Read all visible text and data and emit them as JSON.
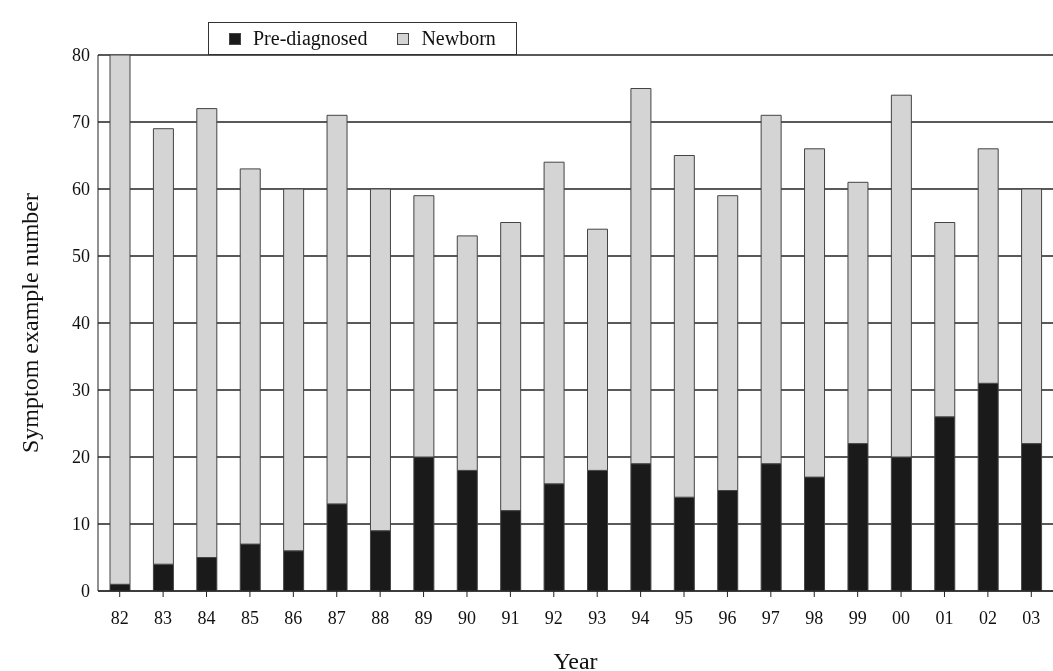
{
  "chart_data": {
    "type": "bar",
    "stacked": true,
    "xlabel": "Year",
    "ylabel": "Symptom example number",
    "categories": [
      "82",
      "83",
      "84",
      "85",
      "86",
      "87",
      "88",
      "89",
      "90",
      "91",
      "92",
      "93",
      "94",
      "95",
      "96",
      "97",
      "98",
      "99",
      "00",
      "01",
      "02",
      "03"
    ],
    "series": [
      {
        "name": "Pre-diagnosed",
        "color": "#1a1a1a",
        "values": [
          1,
          4,
          5,
          7,
          6,
          13,
          9,
          20,
          18,
          12,
          16,
          18,
          19,
          14,
          15,
          19,
          17,
          22,
          20,
          26,
          31,
          22
        ]
      },
      {
        "name": "Newborn",
        "color": "#d4d4d4",
        "values": [
          79,
          65,
          67,
          56,
          54,
          58,
          51,
          39,
          35,
          43,
          48,
          36,
          56,
          51,
          44,
          52,
          49,
          39,
          54,
          29,
          35,
          38
        ]
      }
    ],
    "ylim": [
      0,
      80
    ],
    "yticks": [
      0,
      10,
      20,
      30,
      40,
      50,
      60,
      70,
      80
    ],
    "grid": "y",
    "legend": "top"
  }
}
